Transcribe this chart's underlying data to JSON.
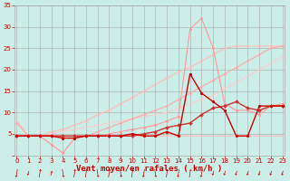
{
  "xlabel": "Vent moyen/en rafales ( km/h )",
  "background_color": "#cceee8",
  "grid_color": "#aaaaaa",
  "x_values": [
    0,
    1,
    2,
    3,
    4,
    5,
    6,
    7,
    8,
    9,
    10,
    11,
    12,
    13,
    14,
    15,
    16,
    17,
    18,
    19,
    20,
    21,
    22,
    23
  ],
  "lines": [
    {
      "y": [
        8,
        4.5,
        4.5,
        4.5,
        4.5,
        4.5,
        4.5,
        4.5,
        4.5,
        4.5,
        4.5,
        4.5,
        4.5,
        4.5,
        4.5,
        4.5,
        4.5,
        4.5,
        4.5,
        4.5,
        4.5,
        4.5,
        4.5,
        4.5
      ],
      "color": "#ffbbbb",
      "lw": 0.8,
      "marker": null,
      "ms": 0
    },
    {
      "y": [
        4.5,
        4.5,
        4.5,
        5.0,
        5.5,
        6.0,
        6.5,
        7.0,
        7.5,
        8.0,
        8.5,
        9.0,
        9.5,
        10.0,
        11.0,
        12.0,
        13.0,
        14.0,
        15.5,
        17.0,
        18.5,
        20.0,
        21.5,
        23.0
      ],
      "color": "#ffcccc",
      "lw": 0.8,
      "marker": null,
      "ms": 0
    },
    {
      "y": [
        4.5,
        4.5,
        4.5,
        5.5,
        6.0,
        7.0,
        8.0,
        9.5,
        10.5,
        12.0,
        13.5,
        15.0,
        16.5,
        18.0,
        19.5,
        20.5,
        22.0,
        23.5,
        25.0,
        25.5,
        25.5,
        25.5,
        25.5,
        25.5
      ],
      "color": "#ffbbbb",
      "lw": 0.8,
      "marker": "o",
      "ms": 1.5
    },
    {
      "y": [
        7.5,
        4.5,
        4.5,
        4.5,
        4.5,
        4.5,
        4.5,
        5.5,
        6.5,
        7.5,
        8.5,
        9.5,
        10.5,
        11.5,
        13.0,
        14.5,
        16.0,
        17.5,
        19.0,
        20.5,
        22.0,
        23.5,
        25.0,
        25.5
      ],
      "color": "#ffaaaa",
      "lw": 0.8,
      "marker": "o",
      "ms": 1.5
    },
    {
      "y": [
        4.5,
        4.5,
        4.5,
        2.5,
        0.5,
        4.0,
        4.5,
        4.5,
        5.0,
        5.5,
        6.0,
        6.5,
        7.0,
        8.0,
        9.0,
        29.5,
        32.0,
        25.0,
        12.0,
        10.5,
        10.5,
        9.5,
        11.5,
        12.0
      ],
      "color": "#ff9999",
      "lw": 0.8,
      "marker": "o",
      "ms": 1.8
    },
    {
      "y": [
        4.5,
        4.5,
        4.5,
        4.5,
        4.5,
        4.5,
        4.5,
        4.5,
        4.5,
        4.5,
        4.5,
        5.0,
        5.5,
        6.5,
        7.0,
        7.5,
        9.5,
        11.0,
        11.5,
        12.5,
        11.0,
        10.5,
        11.5,
        11.5
      ],
      "color": "#cc3333",
      "lw": 1.0,
      "marker": "D",
      "ms": 2.0
    },
    {
      "y": [
        4.5,
        4.5,
        4.5,
        4.5,
        4.0,
        4.0,
        4.5,
        4.5,
        4.5,
        4.5,
        5.0,
        4.5,
        4.5,
        5.5,
        4.5,
        19.0,
        14.5,
        12.5,
        10.5,
        4.5,
        4.5,
        11.5,
        11.5,
        11.5
      ],
      "color": "#cc0000",
      "lw": 1.0,
      "marker": "o",
      "ms": 2.0
    }
  ],
  "ylim": [
    0,
    35
  ],
  "xlim": [
    -0.2,
    23.2
  ],
  "yticks": [
    0,
    5,
    10,
    15,
    20,
    25,
    30,
    35
  ],
  "xticks": [
    0,
    1,
    2,
    3,
    4,
    5,
    6,
    7,
    8,
    9,
    10,
    11,
    12,
    13,
    14,
    15,
    16,
    17,
    18,
    19,
    20,
    21,
    22,
    23
  ],
  "tick_color": "#cc0000",
  "tick_fontsize": 5.0,
  "xlabel_fontsize": 6.5,
  "xlabel_color": "#cc0000",
  "arrow_color": "#cc0000"
}
